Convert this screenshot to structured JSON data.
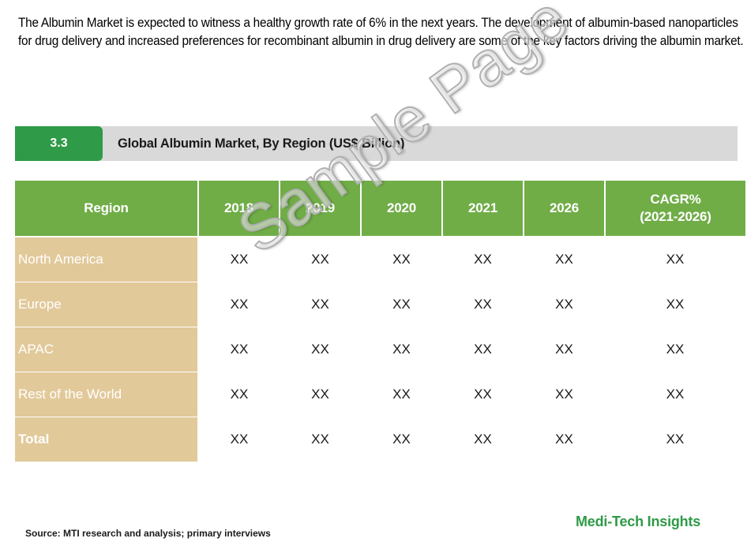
{
  "intro_text": "The Albumin Market is expected to witness a healthy growth rate of 6% in the next years. The development of albumin-based nanoparticles for drug delivery and increased preferences for recombinant albumin in drug delivery are some of the key factors driving the albumin market.",
  "section": {
    "number": "3.3",
    "title": "Global Albumin Market, By Region (US$ Billion)"
  },
  "table": {
    "headers": {
      "region": "Region",
      "y2018": "2018",
      "y2019": "2019",
      "y2020": "2020",
      "y2021": "2021",
      "y2026": "2026",
      "cagr_line1": "CAGR%",
      "cagr_line2": "(2021-2026)"
    },
    "rows": [
      {
        "region": "North America",
        "v2018": "XX",
        "v2019": "XX",
        "v2020": "XX",
        "v2021": "XX",
        "v2026": "XX",
        "cagr": "XX"
      },
      {
        "region": "Europe",
        "v2018": "XX",
        "v2019": "XX",
        "v2020": "XX",
        "v2021": "XX",
        "v2026": "XX",
        "cagr": "XX"
      },
      {
        "region": "APAC",
        "v2018": "XX",
        "v2019": "XX",
        "v2020": "XX",
        "v2021": "XX",
        "v2026": "XX",
        "cagr": "XX"
      },
      {
        "region": "Rest of the World",
        "v2018": "XX",
        "v2019": "XX",
        "v2020": "XX",
        "v2021": "XX",
        "v2026": "XX",
        "cagr": "XX"
      },
      {
        "region": "Total",
        "v2018": "XX",
        "v2019": "XX",
        "v2020": "XX",
        "v2021": "XX",
        "v2026": "XX",
        "cagr": "XX"
      }
    ]
  },
  "watermark": "Sample Page",
  "source": "Source: MTI research and analysis; primary interviews",
  "brand": "Medi-Tech Insights",
  "colors": {
    "header_green": "#70ad47",
    "section_green": "#2f9a47",
    "region_tan": "#e2c99a",
    "section_bar_gray": "#d9d9d9"
  }
}
